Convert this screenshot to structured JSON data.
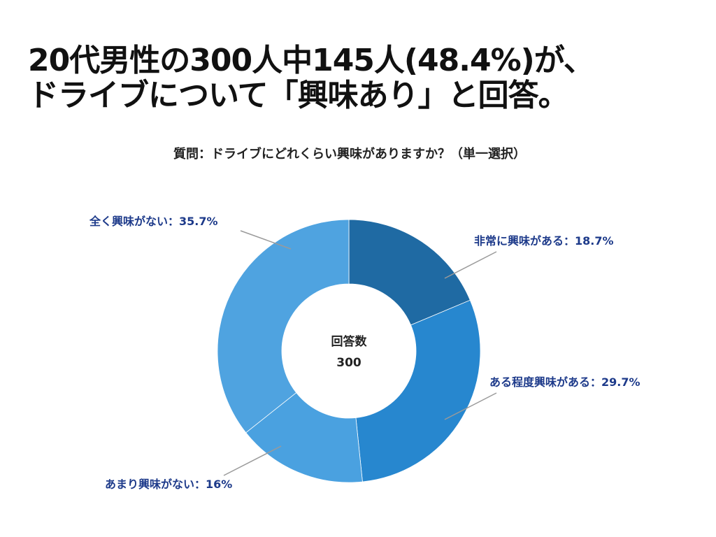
{
  "headline": {
    "line1": "20代男性の300人中145人(48.4%)が、",
    "line2": "ドライブについて「興味あり」と回答。"
  },
  "question": "質問：ドライブにどれくらい興味がありますか？（単一選択）",
  "chart_data": {
    "type": "pie",
    "donut": true,
    "center_label": "回答数",
    "center_value": "300",
    "slices": [
      {
        "label": "非常に興味がある",
        "value": 18.7,
        "display": "非常に興味がある：18.7%",
        "color": "#1f6aa3"
      },
      {
        "label": "ある程度興味がある",
        "value": 29.7,
        "display": "ある程度興味がある：29.7%",
        "color": "#2787cf"
      },
      {
        "label": "あまり興味がない",
        "value": 16,
        "display": "あまり興味がない：16%",
        "color": "#4aa1e0"
      },
      {
        "label": "全く興味がない",
        "value": 35.7,
        "display": "全く興味がない：35.7%",
        "color": "#4fa3e0"
      }
    ],
    "label_color": "#1d3a8a",
    "leader_color": "#9a9a9a"
  }
}
